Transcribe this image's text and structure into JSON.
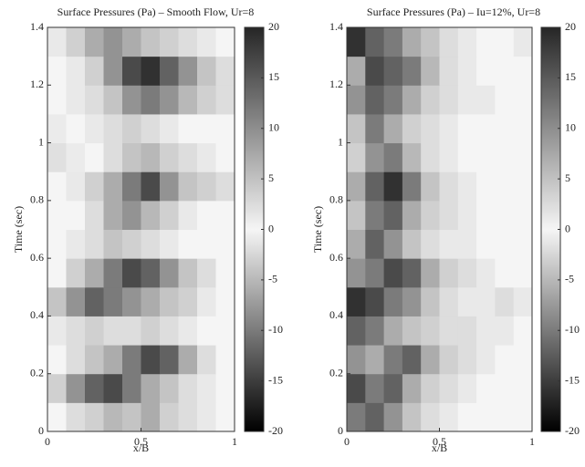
{
  "chart_data": [
    {
      "type": "heatmap",
      "title": "Surface Pressures (Pa) – Smooth Flow, Ur=8",
      "xlabel": "x/B",
      "ylabel": "Time (sec)",
      "x": [
        0.05,
        0.15,
        0.25,
        0.35,
        0.45,
        0.55,
        0.65,
        0.75,
        0.85,
        0.95
      ],
      "y": [
        0.05,
        0.15,
        0.25,
        0.35,
        0.45,
        0.55,
        0.65,
        0.75,
        0.85,
        0.95,
        1.05,
        1.15,
        1.25,
        1.35
      ],
      "z": [
        [
          0,
          -2,
          -3,
          -5,
          -4,
          -6,
          -3,
          -2,
          -1,
          0
        ],
        [
          -3,
          -8,
          -12,
          -14,
          -10,
          -6,
          -4,
          -2,
          -1,
          0
        ],
        [
          0,
          -2,
          -4,
          -6,
          -10,
          -14,
          -12,
          -6,
          -2,
          0
        ],
        [
          -1,
          -2,
          -3,
          -2,
          -2,
          -3,
          -2,
          -1,
          0,
          0
        ],
        [
          -4,
          -8,
          -12,
          -10,
          -8,
          -6,
          -4,
          -3,
          -1,
          0
        ],
        [
          0,
          -3,
          -6,
          -10,
          -14,
          -12,
          -8,
          -4,
          -2,
          0
        ],
        [
          0,
          -1,
          -2,
          -4,
          -3,
          -2,
          -1,
          0,
          0,
          0
        ],
        [
          0,
          0,
          -2,
          -6,
          -8,
          -5,
          -3,
          -1,
          0,
          0
        ],
        [
          0,
          -1,
          -3,
          -6,
          -10,
          -14,
          -8,
          -4,
          -3,
          -2
        ],
        [
          2,
          1,
          0,
          -2,
          -4,
          -5,
          -3,
          -2,
          -1,
          0
        ],
        [
          1,
          0,
          -1,
          -2,
          -3,
          -2,
          -1,
          0,
          0,
          0
        ],
        [
          0,
          -1,
          -2,
          -4,
          -8,
          -10,
          -8,
          -5,
          -3,
          -2
        ],
        [
          0,
          -1,
          -3,
          -8,
          -14,
          -16,
          -12,
          -8,
          -4,
          -2
        ],
        [
          -1,
          -3,
          -6,
          -8,
          -6,
          -4,
          -3,
          -2,
          -1,
          0
        ]
      ],
      "xlim": [
        0,
        1
      ],
      "xticks": [
        0,
        0.5,
        1
      ],
      "ylim": [
        0,
        1.4
      ],
      "yticks": [
        0,
        0.2,
        0.4,
        0.6,
        0.8,
        1,
        1.2,
        1.4
      ],
      "clim": [
        -20,
        20
      ],
      "cticks": [
        -20,
        -15,
        -10,
        -5,
        0,
        5,
        10,
        15,
        20
      ],
      "colormap": [
        "#000000",
        "#f5f5f5",
        "#262626"
      ]
    },
    {
      "type": "heatmap",
      "title": "Surface Pressures (Pa) – Iu=12%, Ur=8",
      "xlabel": "x/B",
      "ylabel": "Time (sec)",
      "x": [
        0.05,
        0.15,
        0.25,
        0.35,
        0.45,
        0.55,
        0.65,
        0.75,
        0.85,
        0.95
      ],
      "y": [
        0.05,
        0.15,
        0.25,
        0.35,
        0.45,
        0.55,
        0.65,
        0.75,
        0.85,
        0.95,
        1.05,
        1.15,
        1.25,
        1.35
      ],
      "z": [
        [
          -10,
          -12,
          -8,
          -4,
          -2,
          -1,
          0,
          0,
          0,
          0
        ],
        [
          -14,
          -10,
          -12,
          -6,
          -3,
          -2,
          -1,
          0,
          0,
          0
        ],
        [
          -8,
          -6,
          -10,
          -12,
          -6,
          -3,
          -2,
          -1,
          0,
          0
        ],
        [
          -12,
          -10,
          -6,
          -4,
          -3,
          -2,
          -2,
          -1,
          -1,
          0
        ],
        [
          -16,
          -14,
          -10,
          -8,
          -4,
          -2,
          -1,
          -1,
          -2,
          -1
        ],
        [
          -8,
          -10,
          -14,
          -12,
          -6,
          -3,
          -2,
          -1,
          0,
          0
        ],
        [
          -6,
          -12,
          -8,
          -4,
          -2,
          -1,
          -1,
          0,
          0,
          0
        ],
        [
          -4,
          -10,
          -12,
          -6,
          -3,
          -2,
          -1,
          0,
          0,
          0
        ],
        [
          -6,
          -12,
          -16,
          -10,
          -4,
          -2,
          -1,
          0,
          0,
          0
        ],
        [
          -3,
          -8,
          -10,
          -5,
          -2,
          -1,
          0,
          0,
          0,
          0
        ],
        [
          -4,
          -10,
          -6,
          -3,
          -2,
          -1,
          0,
          0,
          0,
          0
        ],
        [
          -8,
          -12,
          -10,
          -6,
          -3,
          -2,
          -1,
          -1,
          0,
          0
        ],
        [
          -6,
          -14,
          -12,
          -10,
          -5,
          -2,
          -1,
          0,
          0,
          0
        ],
        [
          -16,
          -12,
          -10,
          -6,
          -4,
          -2,
          -1,
          0,
          0,
          -1
        ]
      ],
      "xlim": [
        0,
        1
      ],
      "xticks": [
        0,
        0.5,
        1
      ],
      "ylim": [
        0,
        1.4
      ],
      "yticks": [
        0,
        0.2,
        0.4,
        0.6,
        0.8,
        1,
        1.2,
        1.4
      ],
      "clim": [
        -20,
        20
      ],
      "cticks": [
        -20,
        -15,
        -10,
        -5,
        0,
        5,
        10,
        15,
        20
      ],
      "colormap": [
        "#000000",
        "#f5f5f5",
        "#262626"
      ]
    }
  ]
}
